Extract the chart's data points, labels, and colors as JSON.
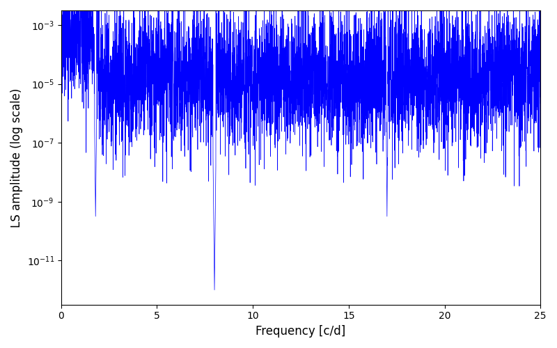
{
  "title": "",
  "xlabel": "Frequency [c/d]",
  "ylabel": "LS amplitude (log scale)",
  "xlim": [
    0,
    25
  ],
  "ylim_log": [
    -12.5,
    -2.5
  ],
  "line_color": "#0000ff",
  "line_width": 0.5,
  "freq_max": 25.0,
  "n_points": 5000,
  "seed": 42,
  "figsize": [
    8.0,
    5.0
  ],
  "dpi": 100,
  "background_color": "#ffffff",
  "yscale": "log",
  "yticks": [
    1e-11,
    1e-09,
    1e-07,
    1e-05,
    0.001
  ]
}
